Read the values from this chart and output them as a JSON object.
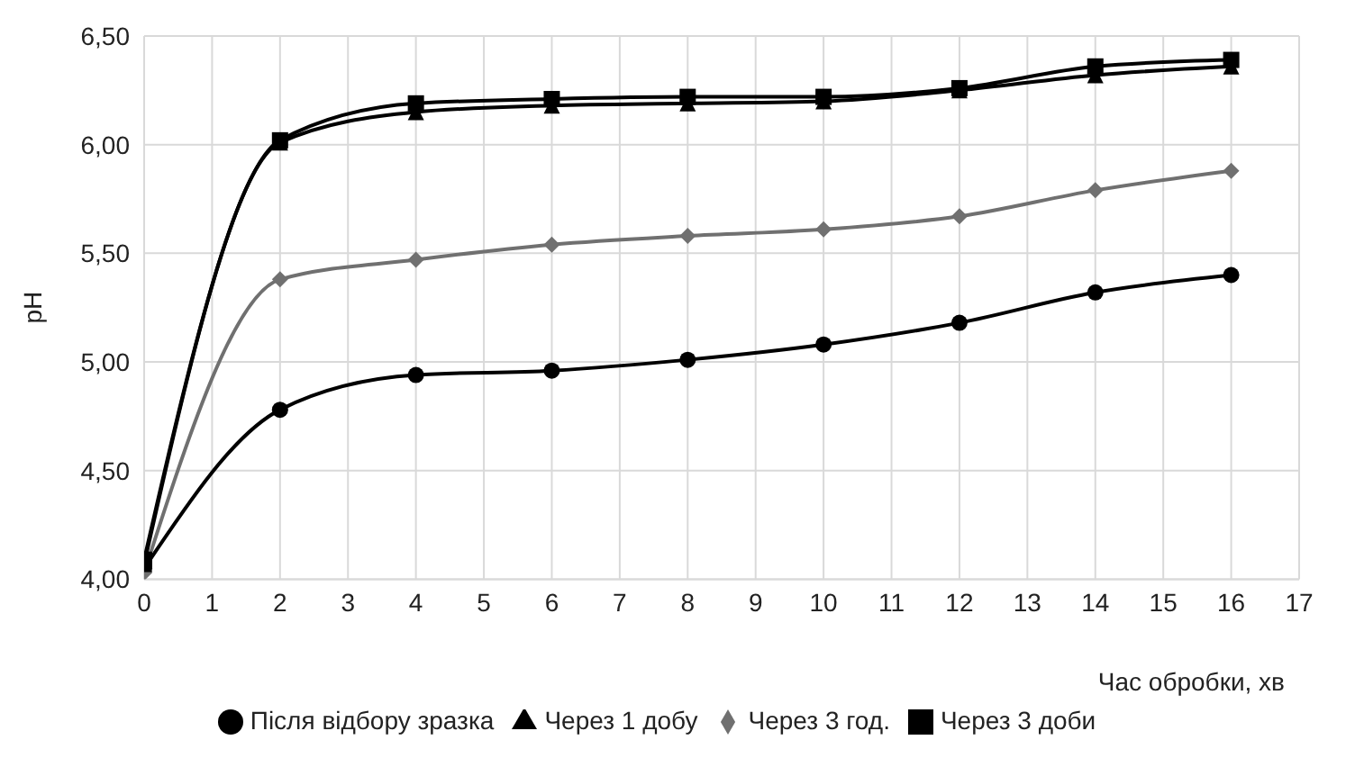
{
  "chart_data": {
    "type": "line",
    "xlabel": "Час обробки, хв",
    "ylabel": "pH",
    "x": [
      0,
      2,
      4,
      6,
      8,
      10,
      12,
      14,
      16
    ],
    "series": [
      {
        "name": "Після відбору зразка",
        "color": "#000000",
        "marker": "circle",
        "values": [
          4.05,
          4.78,
          4.94,
          4.96,
          5.01,
          5.08,
          5.18,
          5.32,
          5.4
        ]
      },
      {
        "name": "Через 3 год.",
        "color": "#707070",
        "marker": "diamond",
        "values": [
          4.03,
          5.38,
          5.47,
          5.54,
          5.58,
          5.61,
          5.67,
          5.79,
          5.88
        ]
      },
      {
        "name": "Через 1 добу",
        "color": "#000000",
        "marker": "triangle",
        "values": [
          4.07,
          6.01,
          6.15,
          6.18,
          6.19,
          6.2,
          6.25,
          6.32,
          6.36
        ]
      },
      {
        "name": "Через 3 доби",
        "color": "#000000",
        "marker": "square",
        "values": [
          4.09,
          6.02,
          6.19,
          6.21,
          6.22,
          6.22,
          6.26,
          6.36,
          6.39
        ]
      }
    ],
    "xlim": [
      0,
      17
    ],
    "xticks": [
      0,
      1,
      2,
      3,
      4,
      5,
      6,
      7,
      8,
      9,
      10,
      11,
      12,
      13,
      14,
      15,
      16,
      17
    ],
    "ylim": [
      4,
      6.5
    ],
    "yticks": [
      {
        "value": 4,
        "label": "4,00"
      },
      {
        "value": 4.5,
        "label": "4,50"
      },
      {
        "value": 5,
        "label": "5,00"
      },
      {
        "value": 5.5,
        "label": "5,50"
      },
      {
        "value": 6,
        "label": "6,00"
      },
      {
        "value": 6.5,
        "label": "6,50"
      }
    ],
    "grid": true,
    "legend": "bottom",
    "line_style": "solid"
  }
}
